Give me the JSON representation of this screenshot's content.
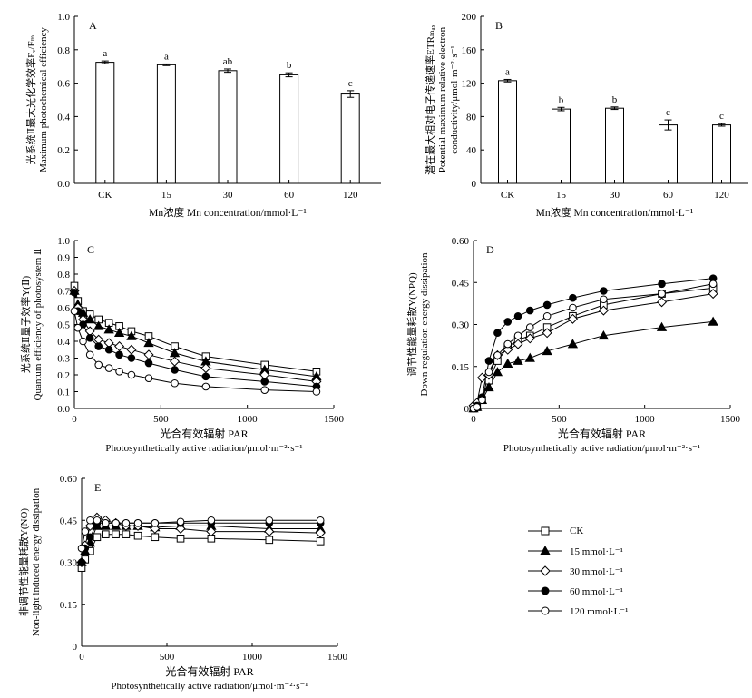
{
  "chart_data": [
    {
      "id": "A",
      "type": "bar",
      "panel_label": "A",
      "ylabel_cn": "光系统Ⅱ最大光化学效率Fᵥ/Fₘ",
      "ylabel_en": "Maximum photochemical efficiency",
      "xlabel": "Mn浓度 Mn concentration/mmol·L⁻¹",
      "categories": [
        "CK",
        "15",
        "30",
        "60",
        "120"
      ],
      "values": [
        0.725,
        0.71,
        0.675,
        0.65,
        0.535
      ],
      "errors": [
        0.008,
        0.005,
        0.01,
        0.012,
        0.02
      ],
      "letters": [
        "a",
        "a",
        "ab",
        "b",
        "c"
      ],
      "ylim": [
        0,
        1.0
      ],
      "yticks": [
        "0.0",
        "0.2",
        "0.4",
        "0.6",
        "0.8",
        "1.0"
      ]
    },
    {
      "id": "B",
      "type": "bar",
      "panel_label": "B",
      "ylabel_cn": "潜在最大相对电子传递速率ETRₘₐₓ",
      "ylabel_en": "Potential maximum relative electron",
      "ylabel_en2": "conductivity/μmol·m⁻²·s⁻¹",
      "xlabel": "Mn浓度 Mn concentration/mmol·L⁻¹",
      "categories": [
        "CK",
        "15",
        "30",
        "60",
        "120"
      ],
      "values": [
        123,
        89,
        90,
        70,
        70
      ],
      "errors": [
        1.5,
        2,
        1.5,
        6,
        1.5
      ],
      "letters": [
        "a",
        "b",
        "b",
        "c",
        "c"
      ],
      "ylim": [
        0,
        200
      ],
      "yticks": [
        "0",
        "40",
        "80",
        "120",
        "160",
        "200"
      ]
    },
    {
      "id": "C",
      "type": "line",
      "panel_label": "C",
      "ylabel_cn": "光系统Ⅱ量子效率Y(Ⅱ)",
      "ylabel_en": "Quantum efficiency of photosystem Ⅱ",
      "xlabel_cn": "光合有效辐射 PAR",
      "xlabel_en": "Photosynthetically active radiation/μmol·m⁻²·s⁻¹",
      "xlim": [
        0,
        1500
      ],
      "ylim": [
        0,
        1.0
      ],
      "xticks": [
        "0",
        "500",
        "1000",
        "1500"
      ],
      "yticks": [
        "0.0",
        "0.1",
        "0.2",
        "0.3",
        "0.4",
        "0.5",
        "0.6",
        "0.7",
        "0.8",
        "0.9",
        "1.0"
      ],
      "x": [
        0,
        20,
        50,
        90,
        140,
        200,
        260,
        330,
        430,
        580,
        760,
        1100,
        1400
      ],
      "series": [
        {
          "name": "CK",
          "marker": "square",
          "values": [
            0.73,
            0.64,
            0.58,
            0.56,
            0.53,
            0.51,
            0.49,
            0.46,
            0.43,
            0.37,
            0.31,
            0.26,
            0.22
          ]
        },
        {
          "name": "15 mmol·L⁻¹",
          "marker": "triangle",
          "values": [
            0.7,
            0.62,
            0.57,
            0.53,
            0.49,
            0.47,
            0.45,
            0.43,
            0.39,
            0.33,
            0.28,
            0.23,
            0.19
          ]
        },
        {
          "name": "30 mmol·L⁻¹",
          "marker": "diamond",
          "values": [
            0.7,
            0.6,
            0.53,
            0.46,
            0.41,
            0.39,
            0.37,
            0.35,
            0.32,
            0.28,
            0.24,
            0.2,
            0.16
          ]
        },
        {
          "name": "60 mmol·L⁻¹",
          "marker": "circle-filled",
          "values": [
            0.69,
            0.58,
            0.5,
            0.42,
            0.37,
            0.35,
            0.32,
            0.3,
            0.27,
            0.23,
            0.19,
            0.16,
            0.13
          ]
        },
        {
          "name": "120 mmol·L⁻¹",
          "marker": "circle-open",
          "values": [
            0.58,
            0.48,
            0.4,
            0.32,
            0.26,
            0.24,
            0.22,
            0.2,
            0.18,
            0.15,
            0.13,
            0.11,
            0.1
          ]
        }
      ]
    },
    {
      "id": "D",
      "type": "line",
      "panel_label": "D",
      "ylabel_cn": "调节性能量耗散Y(NPQ)",
      "ylabel_en": "Down-regulation energy dissipation",
      "xlabel_cn": "光合有效辐射 PAR",
      "xlabel_en": "Photosynthetically active radiation/μmol·m⁻²·s⁻¹",
      "xlim": [
        0,
        1500
      ],
      "ylim": [
        0,
        0.6
      ],
      "xticks": [
        "0",
        "500",
        "1000",
        "1500"
      ],
      "yticks": [
        "0",
        "0.15",
        "0.30",
        "0.45",
        "0.60"
      ],
      "x": [
        0,
        20,
        50,
        90,
        140,
        200,
        260,
        330,
        430,
        580,
        760,
        1100,
        1400
      ],
      "series": [
        {
          "name": "CK",
          "marker": "square",
          "values": [
            0,
            0.005,
            0.03,
            0.1,
            0.17,
            0.22,
            0.245,
            0.26,
            0.29,
            0.33,
            0.37,
            0.41,
            0.43
          ]
        },
        {
          "name": "15 mmol·L⁻¹",
          "marker": "triangle",
          "values": [
            0,
            0.005,
            0.03,
            0.075,
            0.13,
            0.16,
            0.17,
            0.18,
            0.205,
            0.23,
            0.26,
            0.29,
            0.31
          ]
        },
        {
          "name": "30 mmol·L⁻¹",
          "marker": "diamond",
          "values": [
            0.01,
            0.02,
            0.11,
            0.12,
            0.19,
            0.21,
            0.23,
            0.25,
            0.27,
            0.32,
            0.35,
            0.38,
            0.41
          ]
        },
        {
          "name": "60 mmol·L⁻¹",
          "marker": "circle-filled",
          "values": [
            0,
            0.01,
            0.04,
            0.17,
            0.27,
            0.31,
            0.33,
            0.35,
            0.37,
            0.395,
            0.42,
            0.445,
            0.465
          ]
        },
        {
          "name": "120 mmol·L⁻¹",
          "marker": "circle-open",
          "values": [
            0,
            0.005,
            0.03,
            0.13,
            0.19,
            0.23,
            0.26,
            0.29,
            0.33,
            0.36,
            0.39,
            0.41,
            0.445
          ]
        }
      ]
    },
    {
      "id": "E",
      "type": "line",
      "panel_label": "E",
      "ylabel_cn": "非调节性能量耗散Y(NO)",
      "ylabel_en": "Non-light induced energy dissipation",
      "xlabel_cn": "光合有效辐射 PAR",
      "xlabel_en": "Photosynthetically active radiation/μmol·m⁻²·s⁻¹",
      "xlim": [
        0,
        1500
      ],
      "ylim": [
        0,
        0.6
      ],
      "xticks": [
        "0",
        "500",
        "1000",
        "1500"
      ],
      "yticks": [
        "0",
        "0.15",
        "0.30",
        "0.45",
        "0.60"
      ],
      "x": [
        0,
        20,
        50,
        90,
        140,
        200,
        260,
        330,
        430,
        580,
        760,
        1100,
        1400
      ],
      "series": [
        {
          "name": "CK",
          "marker": "square",
          "values": [
            0.28,
            0.31,
            0.34,
            0.39,
            0.4,
            0.4,
            0.4,
            0.395,
            0.39,
            0.385,
            0.385,
            0.38,
            0.375
          ]
        },
        {
          "name": "15 mmol·L⁻¹",
          "marker": "triangle",
          "values": [
            0.3,
            0.34,
            0.37,
            0.43,
            0.43,
            0.43,
            0.43,
            0.43,
            0.425,
            0.43,
            0.43,
            0.42,
            0.42
          ]
        },
        {
          "name": "30 mmol·L⁻¹",
          "marker": "diamond",
          "values": [
            0.3,
            0.36,
            0.43,
            0.46,
            0.45,
            0.44,
            0.43,
            0.43,
            0.42,
            0.42,
            0.41,
            0.41,
            0.405
          ]
        },
        {
          "name": "60 mmol·L⁻¹",
          "marker": "circle-filled",
          "values": [
            0.3,
            0.35,
            0.39,
            0.44,
            0.44,
            0.44,
            0.44,
            0.44,
            0.44,
            0.44,
            0.44,
            0.44,
            0.44
          ]
        },
        {
          "name": "120 mmol·L⁻¹",
          "marker": "circle-open",
          "values": [
            0.35,
            0.41,
            0.45,
            0.45,
            0.44,
            0.44,
            0.44,
            0.44,
            0.44,
            0.445,
            0.45,
            0.45,
            0.45
          ]
        }
      ]
    }
  ],
  "legend": [
    {
      "name": "CK",
      "marker": "square"
    },
    {
      "name": "15 mmol·L⁻¹",
      "marker": "triangle"
    },
    {
      "name": "30 mmol·L⁻¹",
      "marker": "diamond"
    },
    {
      "name": "60 mmol·L⁻¹",
      "marker": "circle-filled"
    },
    {
      "name": "120 mmol·L⁻¹",
      "marker": "circle-open"
    }
  ]
}
